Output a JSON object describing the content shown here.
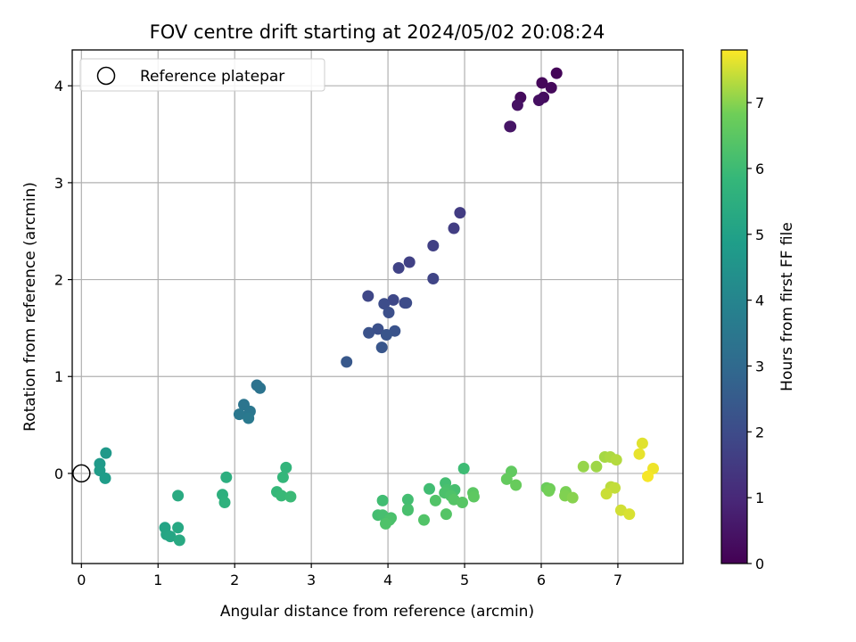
{
  "chart_data": {
    "type": "scatter",
    "title": "FOV centre drift starting at 2024/05/02 20:08:24",
    "xlabel": "Angular distance from reference (arcmin)",
    "ylabel": "Rotation from reference (arcmin)",
    "xlim": [
      -0.12,
      7.85
    ],
    "ylim": [
      -0.93,
      4.37
    ],
    "x_ticks": [
      0,
      1,
      2,
      3,
      4,
      5,
      6,
      7
    ],
    "y_ticks": [
      0,
      1,
      2,
      3,
      4
    ],
    "grid": true,
    "legend": {
      "position": "top-left",
      "entries": [
        "Reference platepar"
      ]
    },
    "reference_point": {
      "x": 0,
      "y": 0
    },
    "colorbar": {
      "label": "Hours from first FF file",
      "colormap": "viridis",
      "range": [
        0,
        7.8
      ],
      "ticks": [
        0,
        1,
        2,
        3,
        4,
        5,
        6,
        7
      ]
    },
    "points": [
      {
        "x": 6.2,
        "y": 4.13,
        "t": 0.1
      },
      {
        "x": 6.01,
        "y": 4.03,
        "t": 0.15
      },
      {
        "x": 6.13,
        "y": 3.98,
        "t": 0.2
      },
      {
        "x": 5.73,
        "y": 3.88,
        "t": 0.25
      },
      {
        "x": 6.03,
        "y": 3.88,
        "t": 0.3
      },
      {
        "x": 5.97,
        "y": 3.85,
        "t": 0.35
      },
      {
        "x": 5.69,
        "y": 3.8,
        "t": 0.4
      },
      {
        "x": 5.6,
        "y": 3.58,
        "t": 0.45
      },
      {
        "x": 5.59,
        "y": 3.58,
        "t": 0.5
      },
      {
        "x": 4.94,
        "y": 2.69,
        "t": 1.55
      },
      {
        "x": 4.86,
        "y": 2.53,
        "t": 1.6
      },
      {
        "x": 4.59,
        "y": 2.35,
        "t": 1.65
      },
      {
        "x": 4.28,
        "y": 2.18,
        "t": 1.7
      },
      {
        "x": 4.14,
        "y": 2.12,
        "t": 1.75
      },
      {
        "x": 4.59,
        "y": 2.01,
        "t": 1.8
      },
      {
        "x": 3.74,
        "y": 1.83,
        "t": 1.85
      },
      {
        "x": 4.07,
        "y": 1.79,
        "t": 1.9
      },
      {
        "x": 4.22,
        "y": 1.76,
        "t": 1.95
      },
      {
        "x": 4.24,
        "y": 1.76,
        "t": 2.0
      },
      {
        "x": 3.95,
        "y": 1.75,
        "t": 2.05
      },
      {
        "x": 4.01,
        "y": 1.66,
        "t": 2.1
      },
      {
        "x": 3.87,
        "y": 1.49,
        "t": 2.15
      },
      {
        "x": 3.75,
        "y": 1.45,
        "t": 2.2
      },
      {
        "x": 4.09,
        "y": 1.47,
        "t": 2.25
      },
      {
        "x": 3.98,
        "y": 1.43,
        "t": 2.3
      },
      {
        "x": 3.92,
        "y": 1.3,
        "t": 2.35
      },
      {
        "x": 3.46,
        "y": 1.15,
        "t": 2.4
      },
      {
        "x": 2.29,
        "y": 0.91,
        "t": 3.3
      },
      {
        "x": 2.33,
        "y": 0.88,
        "t": 3.35
      },
      {
        "x": 2.12,
        "y": 0.71,
        "t": 3.4
      },
      {
        "x": 2.2,
        "y": 0.64,
        "t": 3.45
      },
      {
        "x": 2.06,
        "y": 0.61,
        "t": 3.5
      },
      {
        "x": 2.18,
        "y": 0.57,
        "t": 3.55
      },
      {
        "x": 0.32,
        "y": 0.21,
        "t": 4.7
      },
      {
        "x": 0.24,
        "y": 0.1,
        "t": 4.75
      },
      {
        "x": 0.24,
        "y": 0.03,
        "t": 4.8
      },
      {
        "x": 0.31,
        "y": -0.05,
        "t": 4.85
      },
      {
        "x": 1.09,
        "y": -0.56,
        "t": 5.1
      },
      {
        "x": 1.11,
        "y": -0.63,
        "t": 5.15
      },
      {
        "x": 1.16,
        "y": -0.65,
        "t": 5.2
      },
      {
        "x": 1.26,
        "y": -0.56,
        "t": 5.25
      },
      {
        "x": 1.28,
        "y": -0.69,
        "t": 5.3
      },
      {
        "x": 1.26,
        "y": -0.23,
        "t": 5.35
      },
      {
        "x": 1.89,
        "y": -0.04,
        "t": 5.5
      },
      {
        "x": 1.84,
        "y": -0.22,
        "t": 5.55
      },
      {
        "x": 1.87,
        "y": -0.3,
        "t": 5.6
      },
      {
        "x": 2.67,
        "y": 0.06,
        "t": 5.75
      },
      {
        "x": 2.63,
        "y": -0.04,
        "t": 5.8
      },
      {
        "x": 2.55,
        "y": -0.19,
        "t": 5.85
      },
      {
        "x": 2.61,
        "y": -0.23,
        "t": 5.9
      },
      {
        "x": 2.73,
        "y": -0.24,
        "t": 5.95
      },
      {
        "x": 4.99,
        "y": 0.05,
        "t": 6.0
      },
      {
        "x": 4.54,
        "y": -0.16,
        "t": 6.05
      },
      {
        "x": 4.75,
        "y": -0.1,
        "t": 6.1
      },
      {
        "x": 4.87,
        "y": -0.17,
        "t": 6.15
      },
      {
        "x": 4.77,
        "y": -0.17,
        "t": 6.2
      },
      {
        "x": 4.74,
        "y": -0.2,
        "t": 6.25
      },
      {
        "x": 4.82,
        "y": -0.23,
        "t": 6.3
      },
      {
        "x": 4.62,
        "y": -0.28,
        "t": 6.35
      },
      {
        "x": 4.86,
        "y": -0.27,
        "t": 6.4
      },
      {
        "x": 4.97,
        "y": -0.3,
        "t": 6.45
      },
      {
        "x": 5.11,
        "y": -0.2,
        "t": 6.5
      },
      {
        "x": 5.12,
        "y": -0.24,
        "t": 6.55
      },
      {
        "x": 4.26,
        "y": -0.27,
        "t": 6.1
      },
      {
        "x": 4.26,
        "y": -0.37,
        "t": 6.15
      },
      {
        "x": 4.26,
        "y": -0.38,
        "t": 6.2
      },
      {
        "x": 3.93,
        "y": -0.28,
        "t": 6.05
      },
      {
        "x": 3.87,
        "y": -0.43,
        "t": 6.1
      },
      {
        "x": 3.93,
        "y": -0.43,
        "t": 6.15
      },
      {
        "x": 4.04,
        "y": -0.46,
        "t": 6.2
      },
      {
        "x": 4.02,
        "y": -0.48,
        "t": 6.25
      },
      {
        "x": 3.97,
        "y": -0.52,
        "t": 6.3
      },
      {
        "x": 4.47,
        "y": -0.48,
        "t": 6.35
      },
      {
        "x": 4.76,
        "y": -0.42,
        "t": 6.4
      },
      {
        "x": 5.61,
        "y": 0.02,
        "t": 6.6
      },
      {
        "x": 5.55,
        "y": -0.06,
        "t": 6.65
      },
      {
        "x": 5.67,
        "y": -0.12,
        "t": 6.7
      },
      {
        "x": 6.07,
        "y": -0.15,
        "t": 6.75
      },
      {
        "x": 6.11,
        "y": -0.16,
        "t": 6.8
      },
      {
        "x": 6.1,
        "y": -0.18,
        "t": 6.85
      },
      {
        "x": 6.32,
        "y": -0.19,
        "t": 6.9
      },
      {
        "x": 6.31,
        "y": -0.23,
        "t": 6.95
      },
      {
        "x": 6.41,
        "y": -0.25,
        "t": 7.0
      },
      {
        "x": 6.55,
        "y": 0.07,
        "t": 7.1
      },
      {
        "x": 6.72,
        "y": 0.07,
        "t": 7.15
      },
      {
        "x": 6.83,
        "y": 0.17,
        "t": 7.2
      },
      {
        "x": 6.9,
        "y": 0.17,
        "t": 7.25
      },
      {
        "x": 6.98,
        "y": 0.14,
        "t": 7.3
      },
      {
        "x": 6.91,
        "y": -0.14,
        "t": 7.35
      },
      {
        "x": 6.96,
        "y": -0.15,
        "t": 7.4
      },
      {
        "x": 6.85,
        "y": -0.21,
        "t": 7.45
      },
      {
        "x": 7.04,
        "y": -0.38,
        "t": 7.5
      },
      {
        "x": 7.15,
        "y": -0.42,
        "t": 7.55
      },
      {
        "x": 7.32,
        "y": 0.31,
        "t": 7.6
      },
      {
        "x": 7.28,
        "y": 0.2,
        "t": 7.65
      },
      {
        "x": 7.46,
        "y": 0.05,
        "t": 7.7
      },
      {
        "x": 7.39,
        "y": -0.03,
        "t": 7.75
      }
    ]
  }
}
